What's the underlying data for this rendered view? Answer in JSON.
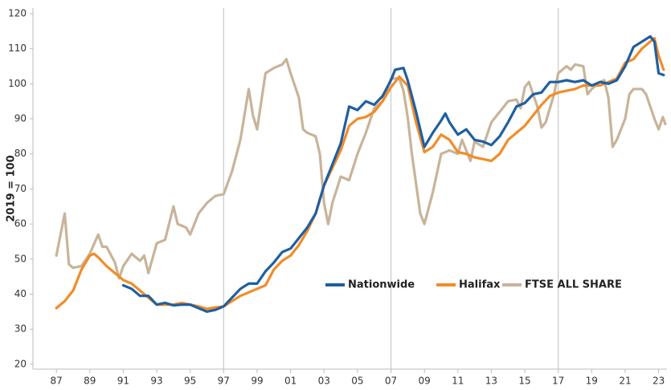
{
  "chart_data": {
    "type": "line",
    "y_label": "2019 = 100",
    "xlim": [
      1985.6,
      2023.5
    ],
    "ylim": [
      18.6,
      121.6
    ],
    "yticks": [
      20,
      30,
      40,
      50,
      60,
      70,
      80,
      90,
      100,
      110,
      120
    ],
    "xticks": [
      {
        "value": 1987,
        "label": "87"
      },
      {
        "value": 1989,
        "label": "89"
      },
      {
        "value": 1991,
        "label": "91"
      },
      {
        "value": 1993,
        "label": "93"
      },
      {
        "value": 1995,
        "label": "95"
      },
      {
        "value": 1997,
        "label": "97"
      },
      {
        "value": 1999,
        "label": "99"
      },
      {
        "value": 2001,
        "label": "01"
      },
      {
        "value": 2003,
        "label": "03"
      },
      {
        "value": 2005,
        "label": "05"
      },
      {
        "value": 2007,
        "label": "07"
      },
      {
        "value": 2009,
        "label": "09"
      },
      {
        "value": 2011,
        "label": "11"
      },
      {
        "value": 2013,
        "label": "13"
      },
      {
        "value": 2015,
        "label": "15"
      },
      {
        "value": 2017,
        "label": "17"
      },
      {
        "value": 2019,
        "label": "19"
      },
      {
        "value": 2021,
        "label": "21"
      },
      {
        "value": 2023,
        "label": "23"
      }
    ],
    "xgrid": [
      1997,
      2007,
      2017
    ],
    "series": [
      {
        "name": "Nationwide",
        "color": "#1f5fa0",
        "x": [
          1991.0,
          1991.5,
          1992.0,
          1992.5,
          1993.0,
          1993.5,
          1994.0,
          1994.5,
          1995.0,
          1995.5,
          1996.0,
          1996.5,
          1997.0,
          1997.5,
          1998.0,
          1998.5,
          1999.0,
          1999.5,
          2000.0,
          2000.5,
          2001.0,
          2001.5,
          2002.0,
          2002.5,
          2003.0,
          2003.5,
          2004.0,
          2004.5,
          2005.0,
          2005.5,
          2006.0,
          2006.5,
          2007.0,
          2007.25,
          2007.75,
          2008.0,
          2008.5,
          2009.0,
          2009.5,
          2010.0,
          2010.25,
          2010.5,
          2011.0,
          2011.5,
          2012.0,
          2012.5,
          2013.0,
          2013.5,
          2014.0,
          2014.5,
          2015.0,
          2015.5,
          2016.0,
          2016.5,
          2017.0,
          2017.5,
          2018.0,
          2018.5,
          2019.0,
          2019.5,
          2020.0,
          2020.5,
          2021.0,
          2021.5,
          2022.0,
          2022.5,
          2022.75,
          2023.0,
          2023.3
        ],
        "values": [
          42.5,
          41.5,
          39.5,
          39.5,
          37,
          37.5,
          36.8,
          37,
          37,
          36,
          35,
          35.5,
          36.5,
          39,
          41.5,
          43,
          43,
          46.5,
          49,
          52,
          53,
          56,
          59,
          63,
          71,
          77,
          83,
          93.5,
          92.5,
          95,
          94,
          96.5,
          101,
          104,
          104.5,
          101,
          92,
          82,
          86,
          89.5,
          91.5,
          89,
          85.5,
          87,
          84,
          83.5,
          82.5,
          85,
          89,
          93.5,
          94.5,
          97,
          97.5,
          100.5,
          100.5,
          101,
          100.5,
          101,
          99.5,
          100.5,
          100,
          101,
          105,
          110.5,
          112,
          113.5,
          112,
          103,
          102.5
        ]
      },
      {
        "name": "Halifax",
        "color": "#f28c28",
        "x": [
          1987.0,
          1987.5,
          1988.0,
          1988.5,
          1989.0,
          1989.25,
          1989.5,
          1990.0,
          1990.5,
          1991.0,
          1991.5,
          1992.0,
          1992.5,
          1993.0,
          1993.5,
          1994.0,
          1994.5,
          1995.0,
          1995.5,
          1996.0,
          1996.5,
          1997.0,
          1997.5,
          1998.0,
          1998.5,
          1999.0,
          1999.5,
          2000.0,
          2000.5,
          2001.0,
          2001.5,
          2002.0,
          2002.5,
          2003.0,
          2003.5,
          2004.0,
          2004.5,
          2005.0,
          2005.5,
          2006.0,
          2006.5,
          2007.0,
          2007.5,
          2008.0,
          2008.5,
          2009.0,
          2009.5,
          2010.0,
          2010.5,
          2011.0,
          2011.5,
          2012.0,
          2012.5,
          2013.0,
          2013.5,
          2014.0,
          2014.5,
          2015.0,
          2015.5,
          2016.0,
          2016.5,
          2017.0,
          2017.5,
          2018.0,
          2018.5,
          2019.0,
          2019.5,
          2020.0,
          2020.5,
          2021.0,
          2021.5,
          2022.0,
          2022.5,
          2022.75,
          2023.0,
          2023.3
        ],
        "values": [
          36,
          38,
          41,
          47,
          51,
          51.5,
          50.5,
          48,
          46,
          44,
          43,
          41,
          39,
          37,
          37,
          37,
          37.5,
          37,
          36.5,
          35.8,
          36.2,
          36.5,
          38,
          39.5,
          40.5,
          41.5,
          42.5,
          47,
          49.5,
          51,
          54,
          58,
          63,
          71,
          76,
          81,
          88,
          90,
          90.5,
          92,
          95,
          99,
          102,
          99.5,
          89,
          80.5,
          82,
          85.5,
          84,
          80.5,
          80,
          79,
          78.5,
          78,
          80,
          84,
          86,
          88,
          91,
          94,
          96.5,
          97.5,
          98,
          98.5,
          99.5,
          99.5,
          99.5,
          100.5,
          101.5,
          106,
          107,
          110,
          112,
          113,
          108,
          104
        ]
      },
      {
        "name": "FTSE ALL SHARE",
        "color": "#c8b49a",
        "x": [
          1987.0,
          1987.5,
          1987.75,
          1988.0,
          1988.5,
          1989.0,
          1989.5,
          1989.75,
          1990.0,
          1990.5,
          1990.75,
          1991.0,
          1991.5,
          1992.0,
          1992.25,
          1992.5,
          1993.0,
          1993.5,
          1994.0,
          1994.25,
          1994.75,
          1995.0,
          1995.5,
          1996.0,
          1996.5,
          1997.0,
          1997.5,
          1998.0,
          1998.5,
          1998.75,
          1999.0,
          1999.5,
          2000.0,
          2000.5,
          2000.75,
          2001.0,
          2001.5,
          2001.75,
          2002.0,
          2002.5,
          2002.75,
          2003.0,
          2003.25,
          2003.5,
          2004.0,
          2004.5,
          2005.0,
          2005.5,
          2006.0,
          2006.5,
          2007.0,
          2007.5,
          2007.75,
          2008.0,
          2008.25,
          2008.75,
          2009.0,
          2009.5,
          2010.0,
          2010.5,
          2011.0,
          2011.25,
          2011.5,
          2011.75,
          2012.0,
          2012.5,
          2013.0,
          2013.5,
          2014.0,
          2014.5,
          2014.75,
          2015.0,
          2015.25,
          2015.75,
          2016.0,
          2016.25,
          2016.75,
          2017.0,
          2017.5,
          2017.75,
          2018.0,
          2018.5,
          2018.75,
          2019.0,
          2019.5,
          2019.75,
          2020.0,
          2020.25,
          2020.5,
          2021.0,
          2021.25,
          2021.5,
          2022.0,
          2022.25,
          2022.75,
          2023.0,
          2023.25,
          2023.4
        ],
        "values": [
          51,
          63,
          48.5,
          47.5,
          48,
          51.5,
          57,
          53.5,
          53.5,
          49,
          44.5,
          48,
          51.5,
          49.5,
          51,
          46,
          54.5,
          55.5,
          65,
          60,
          59,
          57,
          63,
          66,
          68,
          68.5,
          75,
          84,
          98.5,
          91,
          87,
          103,
          104.5,
          105.5,
          107,
          103,
          96,
          87,
          86,
          85,
          80,
          66,
          60,
          66,
          73.5,
          72.5,
          80,
          86,
          93,
          95,
          101.5,
          101.5,
          98,
          90.5,
          80,
          63,
          60,
          69,
          80,
          81,
          80,
          84,
          81,
          78,
          83.5,
          82,
          89,
          92,
          95,
          95.5,
          93,
          99,
          100.5,
          93.5,
          87.5,
          89,
          97,
          103,
          105,
          104,
          105.5,
          105,
          97,
          98.5,
          100.5,
          101,
          96,
          82,
          84,
          90,
          97,
          98.5,
          98.5,
          97,
          90,
          87,
          90.5,
          88.5
        ]
      }
    ]
  }
}
